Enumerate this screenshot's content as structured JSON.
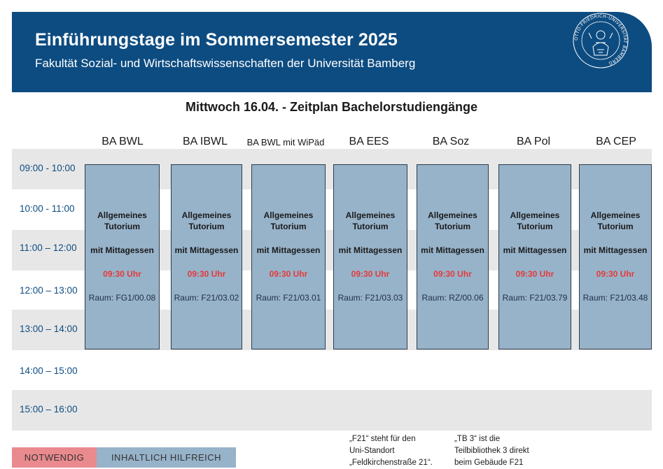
{
  "header": {
    "title": "Einführungstage im Sommersemester 2025",
    "subtitle": "Fakultät Sozial- und Wirtschaftswissenschaften der Universität Bamberg",
    "seal_text": "OTTO-FRIEDRICH-UNIVERSITÄT BAMBERG"
  },
  "page_title": "Mittwoch 16.04. - Zeitplan Bachelorstudiengänge",
  "columns": [
    "BA BWL",
    "BA IBWL",
    "BA BWL mit WiPäd",
    "BA EES",
    "BA Soz",
    "BA Pol",
    "BA CEP"
  ],
  "times": [
    "09:00 - 10:00",
    "10:00 - 11:00",
    "11:00 – 12:00",
    "12:00 – 13:00",
    "13:00 – 14:00",
    "14:00 – 15:00",
    "15:00 – 16:00"
  ],
  "blocks": [
    {
      "title": "Allgemeines Tutorium",
      "subtitle": "mit Mittagessen",
      "time": "09:30 Uhr",
      "room": "Raum: FG1/00.08"
    },
    {
      "title": "Allgemeines Tutorium",
      "subtitle": "mit Mittagessen",
      "time": "09:30 Uhr",
      "room": "Raum: F21/03.02"
    },
    {
      "title": "Allgemeines Tutorium",
      "subtitle": "mit Mittagessen",
      "time": "09:30 Uhr",
      "room": "Raum: F21/03.01"
    },
    {
      "title": "Allgemeines Tutorium",
      "subtitle": "mit Mittagessen",
      "time": "09:30 Uhr",
      "room": "Raum: F21/03.03"
    },
    {
      "title": "Allgemeines Tutorium",
      "subtitle": "mit Mittagessen",
      "time": "09:30 Uhr",
      "room": "Raum: RZ/00.06"
    },
    {
      "title": "Allgemeines Tutorium",
      "subtitle": "mit Mittagessen",
      "time": "09:30 Uhr",
      "room": "Raum: F21/03.79"
    },
    {
      "title": "Allgemeines Tutorium",
      "subtitle": "mit Mittagessen",
      "time": "09:30 Uhr",
      "room": "Raum: F21/03.48"
    }
  ],
  "legend": {
    "required": "NOTWENDIG",
    "helpful": "INHALTLICH HILFREICH"
  },
  "notes": {
    "f21": [
      "„F21“ steht für den",
      "Uni-Standort",
      "„Feldkirchenstraße 21“."
    ],
    "tb3": [
      "„TB 3“ ist die",
      "Teilbibliothek 3 direkt",
      "beim Gebäude F21"
    ]
  },
  "colors": {
    "header_bg": "#0d4c81",
    "block_bg": "#97b3ca",
    "accent_red": "#e23b3b",
    "legend_red": "#e98a8e",
    "band_gray": "#e7e7e7"
  }
}
